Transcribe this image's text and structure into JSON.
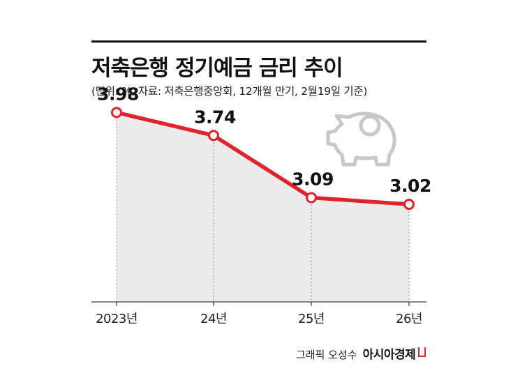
{
  "header": {
    "title": "저축은행 정기예금 금리 추이",
    "subtitle": "(단위: %, 자료: 저축은행중앙회, 12개월 만기, 2월19일 기준)"
  },
  "chart_data": {
    "type": "line",
    "title": "저축은행 정기예금 금리 추이",
    "unit": "%",
    "categories": [
      "2023년",
      "24년",
      "25년",
      "26년"
    ],
    "values": [
      3.98,
      3.74,
      3.09,
      3.02
    ],
    "data_labels": [
      "3.98",
      "3.74",
      "3.09",
      "3.02"
    ],
    "ylim": [
      2.0,
      4.5
    ],
    "grid": false,
    "line_color": "#e0232d",
    "fill_color": "#ececec"
  },
  "decoration": {
    "icon": "piggy-bank-icon",
    "icon_color": "#c8c8c8"
  },
  "credit": {
    "graphic": "그래픽 오성수",
    "brand": "아시아경제"
  }
}
